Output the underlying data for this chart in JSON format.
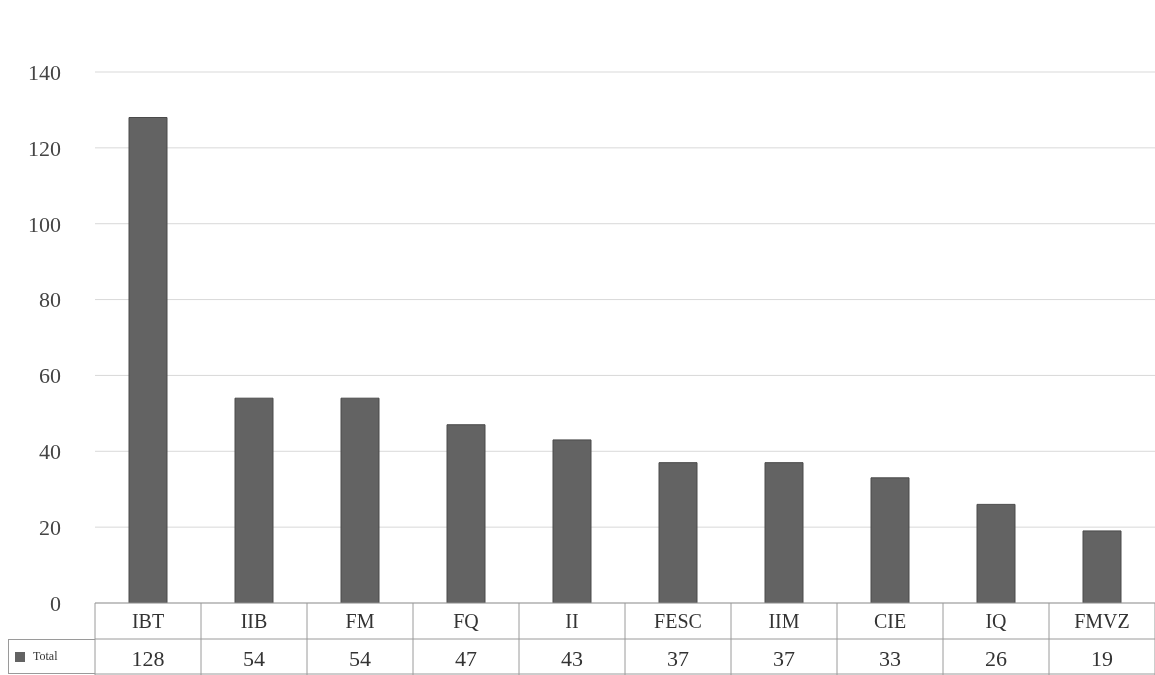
{
  "chart_data": {
    "type": "bar",
    "categories": [
      "IBT",
      "IIB",
      "FM",
      "FQ",
      "II",
      "FESC",
      "IIM",
      "CIE",
      "IQ",
      "FMVZ"
    ],
    "series": [
      {
        "name": "Total",
        "color": "#636363",
        "values": [
          128,
          54,
          54,
          47,
          43,
          37,
          37,
          33,
          26,
          19
        ]
      }
    ],
    "ylim": [
      0,
      140
    ],
    "yticks": [
      0,
      20,
      40,
      60,
      80,
      100,
      120,
      140
    ],
    "grid": "y",
    "legend": "bottom left",
    "data_labels": true
  }
}
